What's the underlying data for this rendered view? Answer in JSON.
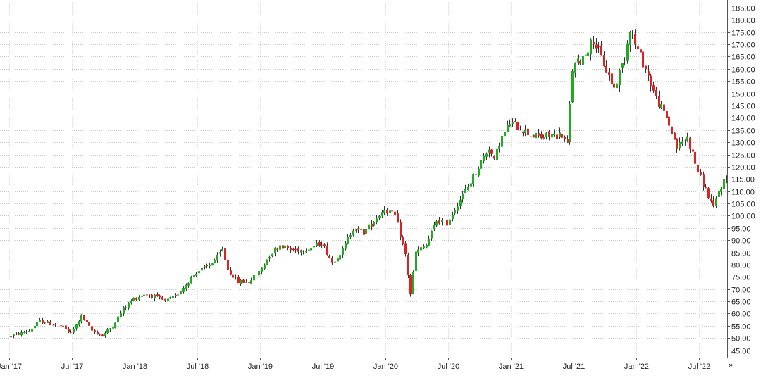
{
  "chart_data": {
    "type": "candlestick",
    "ylim": [
      42,
      187
    ],
    "y_ticks": [
      45,
      50,
      55,
      60,
      65,
      70,
      75,
      80,
      85,
      90,
      95,
      100,
      105,
      110,
      115,
      120,
      125,
      130,
      135,
      140,
      145,
      150,
      155,
      160,
      165,
      170,
      175,
      180,
      185
    ],
    "y_tick_labels": [
      "45.00",
      "50.00",
      "55.00",
      "60.00",
      "65.00",
      "70.00",
      "75.00",
      "80.00",
      "85.00",
      "90.00",
      "95.00",
      "100.00",
      "105.00",
      "110.00",
      "115.00",
      "120.00",
      "125.00",
      "130.00",
      "135.00",
      "140.00",
      "145.00",
      "150.00",
      "155.00",
      "160.00",
      "165.00",
      "170.00",
      "175.00",
      "180.00",
      "185.00"
    ],
    "x_labels": [
      "Jan '17",
      "Jul '17",
      "Jan '18",
      "Jul '18",
      "Jan '19",
      "Jul '19",
      "Jan '20",
      "Jul '20",
      "Jan '21",
      "Jul '21",
      "Jan '22",
      "Jul '22"
    ],
    "x_label_months": [
      0,
      6,
      12,
      18,
      24,
      30,
      36,
      42,
      48,
      54,
      60,
      66
    ],
    "x_start_month": -0.9,
    "x_end_month": 68.7,
    "candles_per_month": 4,
    "grid": true,
    "colors": {
      "up": "#22aa22",
      "down": "#dd2222",
      "wick": "#333333",
      "grid": "#c9c9c9"
    },
    "price_path": [
      [
        0,
        50.5
      ],
      [
        2,
        53
      ],
      [
        3,
        57
      ],
      [
        5,
        55
      ],
      [
        6,
        52
      ],
      [
        7,
        59
      ],
      [
        8,
        53
      ],
      [
        9,
        51
      ],
      [
        10,
        55
      ],
      [
        11,
        62
      ],
      [
        12,
        66
      ],
      [
        13,
        68
      ],
      [
        14,
        67
      ],
      [
        15,
        65
      ],
      [
        16,
        67
      ],
      [
        17,
        72
      ],
      [
        18,
        77
      ],
      [
        19,
        79
      ],
      [
        20,
        83
      ],
      [
        20.5,
        86
      ],
      [
        21,
        78
      ],
      [
        22,
        73
      ],
      [
        23,
        73
      ],
      [
        24,
        77
      ],
      [
        25,
        84
      ],
      [
        26,
        88
      ],
      [
        27,
        86
      ],
      [
        28,
        86
      ],
      [
        29,
        87
      ],
      [
        30,
        89
      ],
      [
        31,
        81
      ],
      [
        32,
        86
      ],
      [
        33,
        95
      ],
      [
        34,
        93
      ],
      [
        35,
        98
      ],
      [
        36,
        103
      ],
      [
        37,
        100
      ],
      [
        38,
        84
      ],
      [
        38.5,
        68
      ],
      [
        39,
        85
      ],
      [
        40,
        88
      ],
      [
        41,
        98
      ],
      [
        42,
        97
      ],
      [
        43,
        105
      ],
      [
        44,
        112
      ],
      [
        45,
        120
      ],
      [
        46,
        128
      ],
      [
        46.5,
        122
      ],
      [
        47,
        130
      ],
      [
        48,
        138
      ],
      [
        49,
        136
      ],
      [
        50,
        133
      ],
      [
        51,
        132
      ],
      [
        52,
        133
      ],
      [
        53,
        133
      ],
      [
        53.5,
        129
      ],
      [
        54,
        160
      ],
      [
        55,
        165
      ],
      [
        56,
        172
      ],
      [
        57,
        162
      ],
      [
        58,
        152
      ],
      [
        59,
        165
      ],
      [
        59.5,
        177
      ],
      [
        60,
        170
      ],
      [
        61,
        160
      ],
      [
        62,
        148
      ],
      [
        63,
        140
      ],
      [
        64,
        128
      ],
      [
        65,
        132
      ],
      [
        66,
        118
      ],
      [
        67,
        108
      ],
      [
        67.5,
        103
      ],
      [
        68,
        110
      ],
      [
        68.6,
        115
      ]
    ]
  }
}
